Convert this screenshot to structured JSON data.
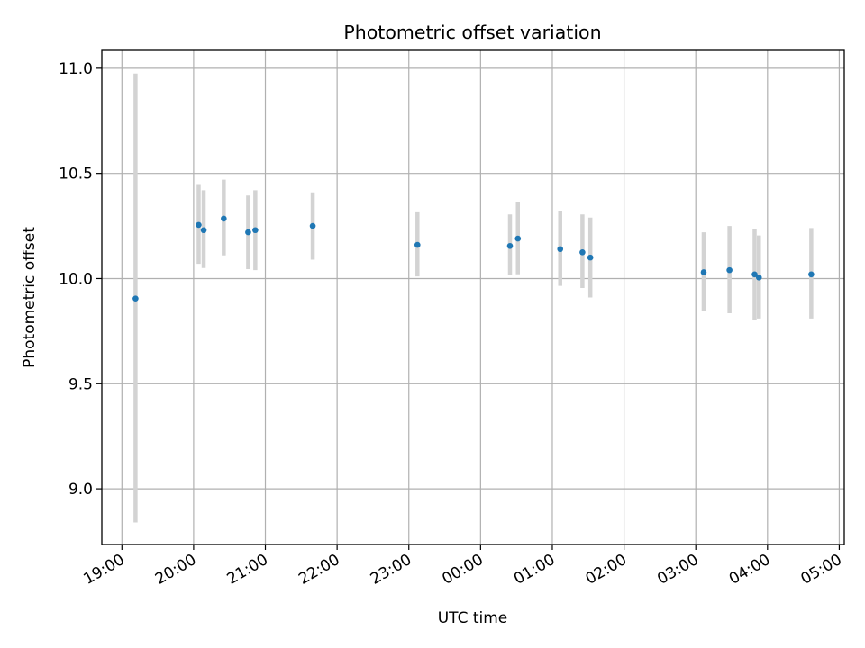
{
  "chart_data": {
    "type": "scatter",
    "title": "Photometric offset variation",
    "xlabel": "UTC time",
    "ylabel": "Photometric offset",
    "x_tick_labels": [
      "19:00",
      "20:00",
      "21:00",
      "22:00",
      "23:00",
      "00:00",
      "01:00",
      "02:00",
      "03:00",
      "04:00",
      "05:00"
    ],
    "y_tick_labels": [
      "9.0",
      "9.5",
      "10.0",
      "10.5",
      "11.0"
    ],
    "x_ticks_hours": [
      19,
      20,
      21,
      22,
      23,
      24,
      25,
      26,
      27,
      28,
      29
    ],
    "y_ticks": [
      9.0,
      9.5,
      10.0,
      10.5,
      11.0
    ],
    "xlim_hours": [
      18.72,
      29.07
    ],
    "ylim": [
      8.735,
      11.085
    ],
    "grid": true,
    "points": [
      {
        "time": "19:11",
        "t": 19.19,
        "y": 9.905,
        "err_low": 8.84,
        "err_high": 10.975
      },
      {
        "time": "20:04",
        "t": 20.07,
        "y": 10.255,
        "err_low": 10.07,
        "err_high": 10.445
      },
      {
        "time": "20:08",
        "t": 20.14,
        "y": 10.23,
        "err_low": 10.05,
        "err_high": 10.42
      },
      {
        "time": "20:25",
        "t": 20.42,
        "y": 10.285,
        "err_low": 10.11,
        "err_high": 10.47
      },
      {
        "time": "20:45",
        "t": 20.76,
        "y": 10.22,
        "err_low": 10.045,
        "err_high": 10.395
      },
      {
        "time": "20:51",
        "t": 20.86,
        "y": 10.23,
        "err_low": 10.04,
        "err_high": 10.42
      },
      {
        "time": "21:39",
        "t": 21.66,
        "y": 10.25,
        "err_low": 10.09,
        "err_high": 10.41
      },
      {
        "time": "23:07",
        "t": 23.12,
        "y": 10.16,
        "err_low": 10.01,
        "err_high": 10.315
      },
      {
        "time": "00:24",
        "t": 24.41,
        "y": 10.155,
        "err_low": 10.015,
        "err_high": 10.305
      },
      {
        "time": "00:31",
        "t": 24.52,
        "y": 10.19,
        "err_low": 10.02,
        "err_high": 10.365
      },
      {
        "time": "01:06",
        "t": 25.11,
        "y": 10.14,
        "err_low": 9.965,
        "err_high": 10.32
      },
      {
        "time": "01:25",
        "t": 25.42,
        "y": 10.125,
        "err_low": 9.955,
        "err_high": 10.305
      },
      {
        "time": "01:32",
        "t": 25.53,
        "y": 10.1,
        "err_low": 9.91,
        "err_high": 10.29
      },
      {
        "time": "03:06",
        "t": 27.11,
        "y": 10.03,
        "err_low": 9.845,
        "err_high": 10.22
      },
      {
        "time": "03:28",
        "t": 27.47,
        "y": 10.04,
        "err_low": 9.835,
        "err_high": 10.25
      },
      {
        "time": "03:49",
        "t": 27.82,
        "y": 10.02,
        "err_low": 9.805,
        "err_high": 10.235
      },
      {
        "time": "03:52",
        "t": 27.88,
        "y": 10.005,
        "err_low": 9.81,
        "err_high": 10.205
      },
      {
        "time": "04:37",
        "t": 28.61,
        "y": 10.02,
        "err_low": 9.81,
        "err_high": 10.24
      }
    ],
    "colors": {
      "marker": "#1f77b4",
      "errorbar": "#d3d3d3",
      "grid": "#b0b0b0",
      "axes": "#000000"
    }
  }
}
